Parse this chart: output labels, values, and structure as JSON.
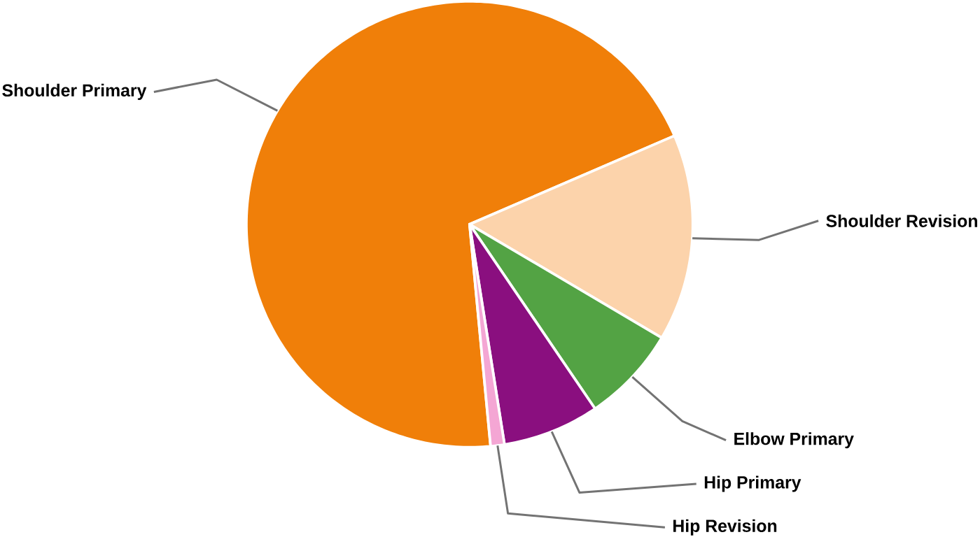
{
  "chart_data": {
    "type": "pie",
    "categories": [
      "Shoulder Primary",
      "Shoulder Revision",
      "Elbow Primary",
      "Hip Primary",
      "Hip Revision"
    ],
    "values": [
      70,
      15,
      7,
      7,
      1
    ],
    "colors": [
      "#f07f09",
      "#fcd3ab",
      "#53a344",
      "#8a0f7f",
      "#f4a6d4"
    ]
  }
}
